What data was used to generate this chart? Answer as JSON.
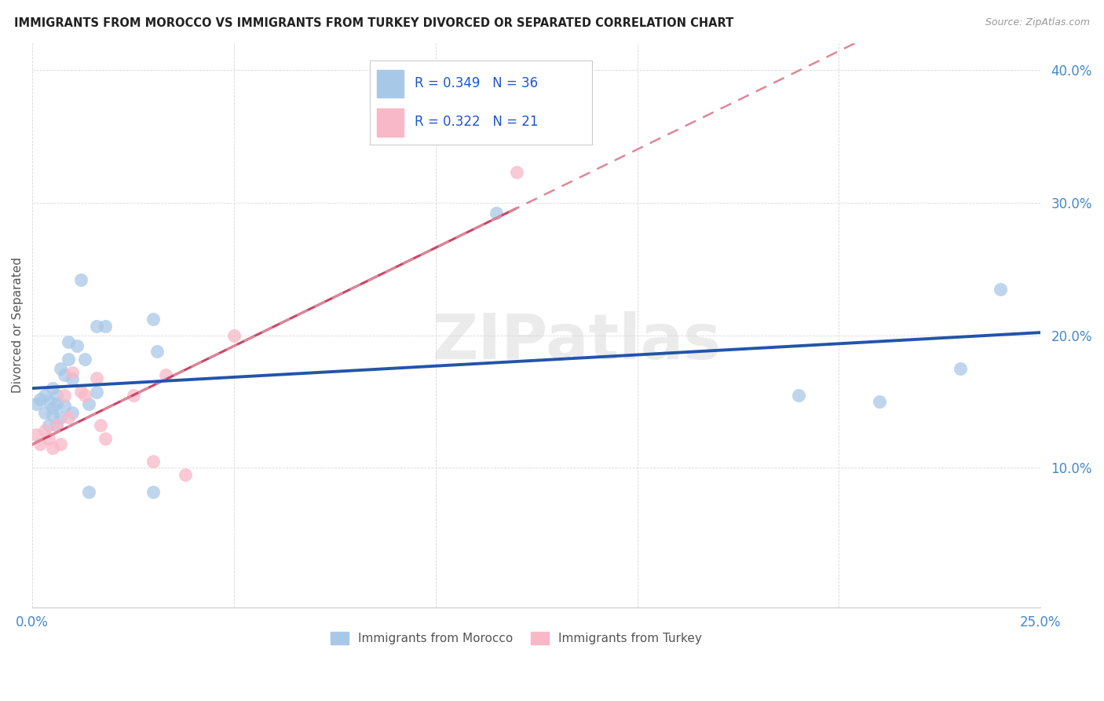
{
  "title": "IMMIGRANTS FROM MOROCCO VS IMMIGRANTS FROM TURKEY DIVORCED OR SEPARATED CORRELATION CHART",
  "source": "Source: ZipAtlas.com",
  "ylabel": "Divorced or Separated",
  "watermark": "ZIPatlas",
  "legend_blue_label": "Immigrants from Morocco",
  "legend_pink_label": "Immigrants from Turkey",
  "xlim": [
    0.0,
    0.25
  ],
  "ylim": [
    -0.005,
    0.42
  ],
  "xticks": [
    0.0,
    0.05,
    0.1,
    0.15,
    0.2,
    0.25
  ],
  "yticks": [
    0.1,
    0.2,
    0.3,
    0.4
  ],
  "blue_scatter_color": "#a8c8e8",
  "pink_scatter_color": "#f8b8c8",
  "blue_line_color": "#2255aa",
  "pink_solid_color": "#cc4466",
  "pink_dash_color": "#dd8899",
  "background_color": "#ffffff",
  "grid_color": "#d8d8d8",
  "morocco_x": [
    0.001,
    0.002,
    0.003,
    0.003,
    0.004,
    0.004,
    0.005,
    0.005,
    0.005,
    0.006,
    0.006,
    0.006,
    0.007,
    0.007,
    0.008,
    0.008,
    0.009,
    0.009,
    0.01,
    0.01,
    0.011,
    0.012,
    0.013,
    0.014,
    0.014,
    0.016,
    0.016,
    0.018,
    0.03,
    0.03,
    0.031,
    0.115,
    0.19,
    0.21,
    0.23,
    0.24
  ],
  "morocco_y": [
    0.148,
    0.152,
    0.142,
    0.155,
    0.132,
    0.15,
    0.14,
    0.145,
    0.16,
    0.155,
    0.132,
    0.148,
    0.138,
    0.175,
    0.147,
    0.17,
    0.182,
    0.195,
    0.167,
    0.142,
    0.192,
    0.242,
    0.182,
    0.148,
    0.082,
    0.207,
    0.157,
    0.207,
    0.212,
    0.082,
    0.188,
    0.292,
    0.155,
    0.15,
    0.175,
    0.235
  ],
  "turkey_x": [
    0.001,
    0.002,
    0.003,
    0.004,
    0.005,
    0.006,
    0.007,
    0.008,
    0.009,
    0.01,
    0.012,
    0.013,
    0.016,
    0.017,
    0.018,
    0.025,
    0.03,
    0.033,
    0.038,
    0.05,
    0.12
  ],
  "turkey_y": [
    0.125,
    0.118,
    0.128,
    0.122,
    0.115,
    0.132,
    0.118,
    0.155,
    0.138,
    0.172,
    0.158,
    0.155,
    0.168,
    0.132,
    0.122,
    0.155,
    0.105,
    0.17,
    0.095,
    0.2,
    0.323
  ]
}
